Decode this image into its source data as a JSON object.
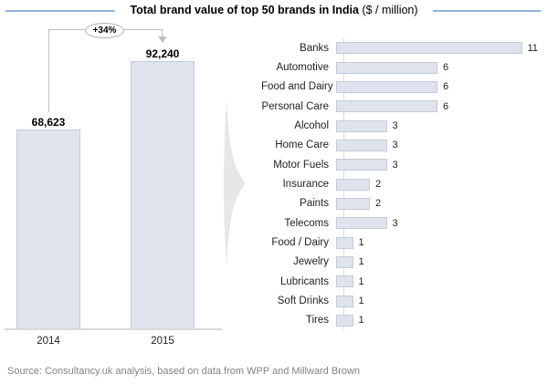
{
  "title": {
    "main": "Total brand value of top 50 brands in India",
    "suffix": " ($ / million)"
  },
  "chart_data": [
    {
      "type": "bar",
      "orientation": "vertical",
      "title": "Total brand value of top 50 brands in India ($ / million)",
      "categories": [
        "2014",
        "2015"
      ],
      "values": [
        68623,
        92240
      ],
      "value_labels": [
        "68,623",
        "92,240"
      ],
      "annotation": "+34%",
      "ylim": [
        0,
        92240
      ],
      "grid": false,
      "legend": false
    },
    {
      "type": "bar",
      "orientation": "horizontal",
      "categories": [
        "Banks",
        "Automotive",
        "Food and Dairy",
        "Personal Care",
        "Alcohol",
        "Home Care",
        "Motor Fuels",
        "Insurance",
        "Paints",
        "Telecoms",
        "Food / Dairy",
        "Jewelry",
        "Lubricants",
        "Soft Drinks",
        "Tires"
      ],
      "values": [
        11,
        6,
        6,
        6,
        3,
        3,
        3,
        2,
        2,
        3,
        1,
        1,
        1,
        1,
        1
      ],
      "xlim": [
        0,
        11
      ],
      "grid": false,
      "legend": false,
      "value_labels_shown": true
    }
  ],
  "source": "Source: Consultancy.uk analysis, based on data from WPP and Millward Brown",
  "colors": {
    "bar_fill": "#dee3ee",
    "bar_border": "#c2cad9",
    "accent_line": "#8fb4d9",
    "connector": "#bfbfbf",
    "axis": "#d9d9d9",
    "source_text": "#7f8489",
    "arrow_fill": "#e7e7e7"
  }
}
